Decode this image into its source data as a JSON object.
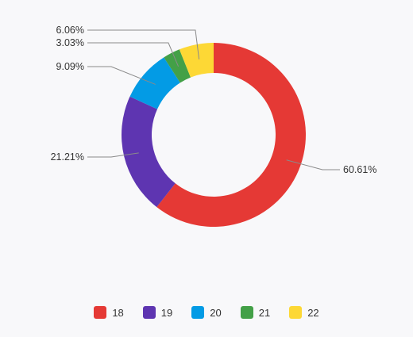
{
  "chart_data": {
    "type": "pie",
    "variant": "donut",
    "categories": [
      "18",
      "19",
      "20",
      "21",
      "22"
    ],
    "values": [
      60.61,
      21.21,
      9.09,
      3.03,
      6.06
    ],
    "value_labels": [
      "60.61%",
      "21.21%",
      "9.09%",
      "3.03%",
      "6.06%"
    ],
    "colors": [
      "#e53935",
      "#5e35b1",
      "#039be5",
      "#43a047",
      "#fdd835"
    ],
    "title": "",
    "legend_position": "bottom"
  },
  "legend": {
    "items": [
      {
        "label": "18",
        "color": "#e53935"
      },
      {
        "label": "19",
        "color": "#5e35b1"
      },
      {
        "label": "20",
        "color": "#039be5"
      },
      {
        "label": "21",
        "color": "#43a047"
      },
      {
        "label": "22",
        "color": "#fdd835"
      }
    ]
  }
}
